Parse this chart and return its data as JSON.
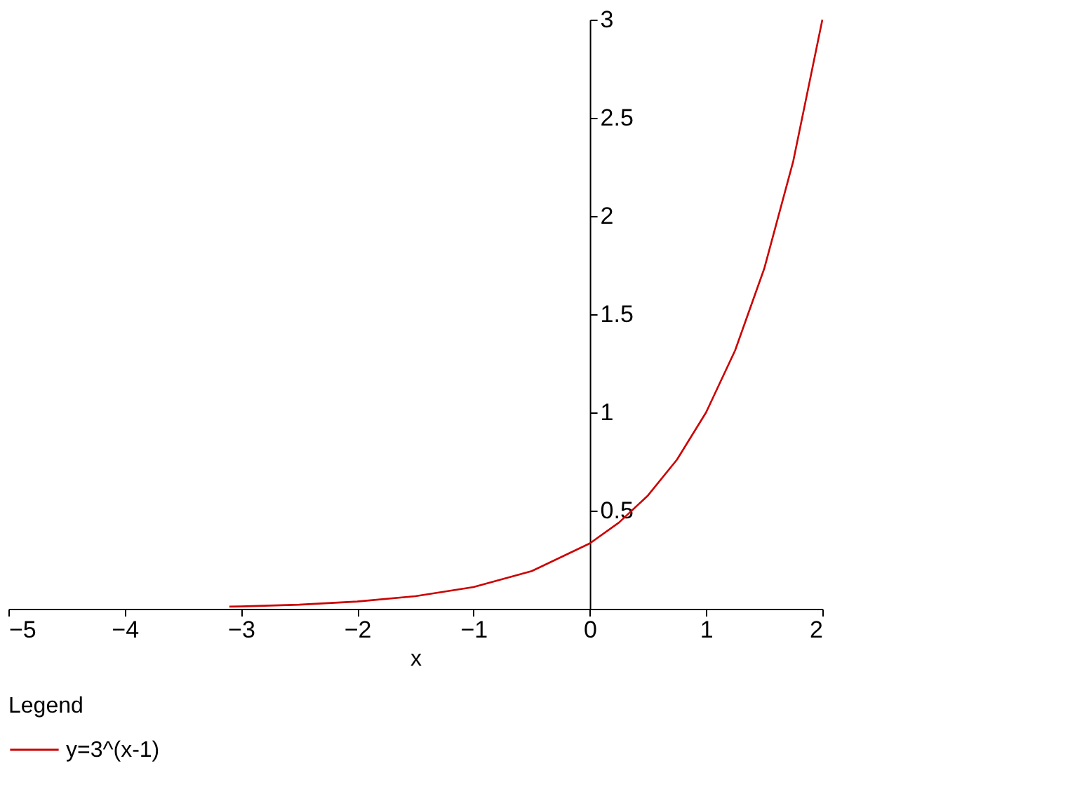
{
  "chart_data": {
    "type": "line",
    "xlabel": "x",
    "legend_title": "Legend",
    "legend": "bottom",
    "grid": false,
    "marker": "none",
    "line_style": "solid",
    "x": [
      -3.1,
      -3,
      -2.5,
      -2,
      -1.5,
      -1,
      -0.5,
      0,
      0.25,
      0.5,
      0.75,
      1,
      1.25,
      1.5,
      1.75,
      2
    ],
    "series": [
      {
        "name": "y=3^(x-1)",
        "color": "#cc0000",
        "values": [
          0.011,
          0.012,
          0.021,
          0.037,
          0.064,
          0.111,
          0.192,
          0.333,
          0.439,
          0.577,
          0.76,
          1,
          1.316,
          1.732,
          2.28,
          3
        ]
      }
    ],
    "xlim": [
      -5,
      2
    ],
    "ylim": [
      0,
      3
    ],
    "xticks": [
      -5,
      -4,
      -3,
      -2,
      -1,
      0,
      1,
      2
    ],
    "yticks": [
      0.5,
      1,
      1.5,
      2,
      2.5,
      3
    ]
  }
}
